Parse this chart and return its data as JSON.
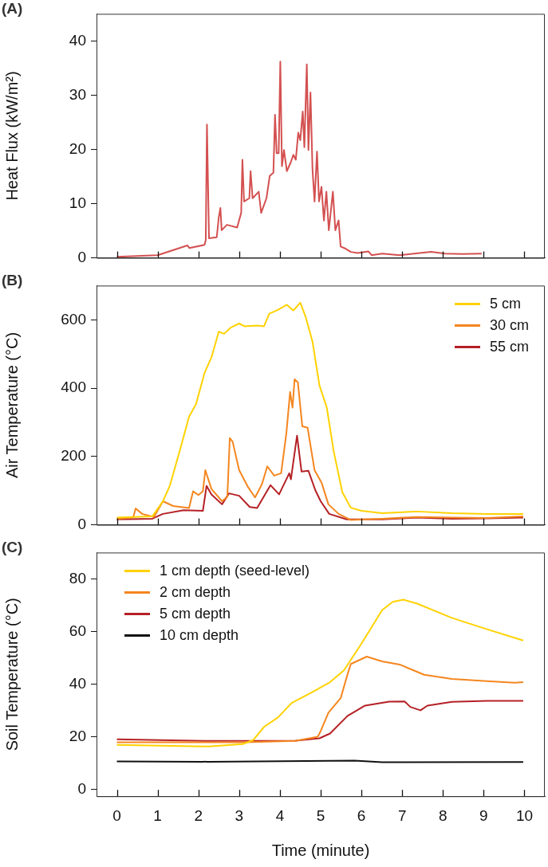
{
  "chart_data": [
    {
      "type": "line",
      "title": "(A)",
      "ylabel": "Heat Flux (kW/m²)",
      "xlim": [
        -0.5,
        10.5
      ],
      "xticks": [
        0,
        1,
        2,
        3,
        4,
        5,
        6,
        7,
        8,
        9,
        10
      ],
      "ylim": [
        0,
        45
      ],
      "yticks": [
        0,
        10,
        20,
        30,
        40
      ],
      "tick_labels": "y",
      "grid": false,
      "legend": false,
      "series": [
        {
          "color": "#d45050",
          "x": [
            0,
            1,
            1.73,
            1.78,
            2.15,
            2.18,
            2.21,
            2.26,
            2.45,
            2.5,
            2.54,
            2.57,
            2.7,
            2.95,
            3.05,
            3.08,
            3.12,
            3.25,
            3.28,
            3.33,
            3.48,
            3.54,
            3.67,
            3.75,
            3.84,
            3.88,
            3.92,
            3.97,
            4.01,
            4.05,
            4.1,
            4.17,
            4.26,
            4.33,
            4.39,
            4.45,
            4.5,
            4.56,
            4.6,
            4.66,
            4.7,
            4.75,
            4.8,
            4.85,
            4.91,
            4.96,
            5.02,
            5.08,
            5.14,
            5.2,
            5.3,
            5.36,
            5.44,
            5.49,
            5.61,
            5.74,
            5.91,
            6.17,
            6.25,
            6.51,
            6.94,
            7.71,
            8.05,
            8.48,
            8.95
          ],
          "values": [
            0.2,
            0.5,
            2.3,
            1.8,
            2.4,
            3.3,
            24.6,
            3.6,
            3.8,
            7.5,
            9.2,
            5.1,
            6.1,
            5.6,
            8.3,
            18.1,
            10.4,
            11,
            16,
            11,
            12.2,
            8.3,
            11,
            15.1,
            15.7,
            26.4,
            19.3,
            19.3,
            36.2,
            16.9,
            19.9,
            16,
            17.5,
            19,
            18.1,
            23.1,
            21.7,
            27,
            20.4,
            35.7,
            19.9,
            30.5,
            16.3,
            10.4,
            19.6,
            10.4,
            13.1,
            6.9,
            12.2,
            5.1,
            12.2,
            5.1,
            6.9,
            2.1,
            1.7,
            1.1,
            0.9,
            1.2,
            0.5,
            0.8,
            0.5,
            1.1,
            0.8,
            0.7,
            0.8
          ]
        }
      ]
    },
    {
      "type": "line",
      "title": "(B)",
      "ylabel": "Air Temperature (°C)",
      "xlim": [
        -0.5,
        10.5
      ],
      "xticks": [
        0,
        1,
        2,
        3,
        4,
        5,
        6,
        7,
        8,
        9,
        10
      ],
      "ylim": [
        0,
        700
      ],
      "yticks": [
        0,
        200,
        400,
        600
      ],
      "tick_labels": "y",
      "grid": false,
      "legend": "top right",
      "series": [
        {
          "name": "5 cm",
          "color": "#ffd200",
          "x": [
            0,
            0.87,
            1.13,
            1.3,
            1.56,
            1.77,
            1.94,
            2.15,
            2.32,
            2.5,
            2.63,
            2.79,
            3.0,
            3.13,
            3.44,
            3.61,
            3.74,
            3.95,
            4.17,
            4.33,
            4.5,
            4.63,
            4.8,
            4.97,
            5.15,
            5.32,
            5.53,
            5.74,
            6.0,
            6.51,
            7.37,
            8.22,
            9.08,
            9.97
          ],
          "values": [
            21,
            25,
            69,
            115,
            224,
            316,
            353,
            444,
            490,
            565,
            559,
            577,
            589,
            581,
            583,
            581,
            618,
            629,
            644,
            627,
            650,
            609,
            536,
            408,
            343,
            215,
            96,
            50,
            41,
            34,
            39,
            34,
            32,
            32
          ]
        },
        {
          "name": "30 cm",
          "color": "#f5861f",
          "x": [
            0,
            0.4,
            0.46,
            0.62,
            0.91,
            1.13,
            1.38,
            1.77,
            1.87,
            2.0,
            2.11,
            2.17,
            2.32,
            2.58,
            2.71,
            2.77,
            2.84,
            3.0,
            3.22,
            3.39,
            3.56,
            3.69,
            3.86,
            4.03,
            4.16,
            4.25,
            4.31,
            4.36,
            4.44,
            4.55,
            4.68,
            4.85,
            5.02,
            5.19,
            5.44,
            5.74,
            6.51,
            7.37,
            8.22,
            9.08,
            9.97
          ],
          "values": [
            18,
            21,
            48,
            32,
            23,
            69,
            55,
            49,
            98,
            87,
            98,
            160,
            105,
            69,
            82,
            254,
            243,
            160,
            110,
            80,
            119,
            171,
            144,
            151,
            270,
            389,
            343,
            426,
            417,
            288,
            284,
            160,
            124,
            60,
            32,
            14,
            18,
            23,
            21,
            20,
            25
          ]
        },
        {
          "name": "55 cm",
          "color": "#b52025",
          "x": [
            0,
            0.87,
            1.13,
            1.64,
            2.11,
            2.2,
            2.32,
            2.58,
            2.75,
            3.0,
            3.26,
            3.44,
            3.77,
            3.98,
            4.23,
            4.27,
            4.42,
            4.53,
            4.7,
            4.87,
            5.0,
            5.21,
            5.64,
            6.51,
            7.37,
            8.22,
            9.08,
            9.97
          ],
          "values": [
            16,
            18,
            32,
            43,
            41,
            114,
            89,
            60,
            92,
            85,
            52,
            49,
            116,
            89,
            151,
            133,
            261,
            156,
            158,
            101,
            69,
            32,
            16,
            16,
            21,
            18,
            19,
            21
          ]
        }
      ]
    },
    {
      "type": "line",
      "title": "(C)",
      "xlabel": "Time (minute)",
      "ylabel": "Soil Temperature (°C)",
      "xlim": [
        -0.5,
        10.5
      ],
      "xticks": [
        0,
        1,
        2,
        3,
        4,
        5,
        6,
        7,
        8,
        9,
        10
      ],
      "ylim": [
        -2.5,
        90
      ],
      "yticks": [
        0,
        20,
        40,
        60,
        80
      ],
      "grid": false,
      "legend": "top left",
      "series": [
        {
          "name": "1 cm depth (seed-level)",
          "color": "#ffd200",
          "x": [
            0,
            2.24,
            3.09,
            3.35,
            3.61,
            3.95,
            4.29,
            4.8,
            5.23,
            5.57,
            6.0,
            6.51,
            6.77,
            7.03,
            7.37,
            8.22,
            9.08,
            9.97
          ],
          "values": [
            17,
            16.4,
            17.3,
            18.9,
            23.8,
            27.4,
            32.9,
            37.1,
            40.8,
            45.3,
            55.4,
            68.2,
            71.3,
            72.1,
            70.6,
            65.2,
            60.9,
            56.6
          ]
        },
        {
          "name": "2 cm depth",
          "color": "#f5861f",
          "x": [
            0,
            3.09,
            4.38,
            4.93,
            4.99,
            5.19,
            5.49,
            5.66,
            5.74,
            6.13,
            6.51,
            6.94,
            7.54,
            8.22,
            9.08,
            9.76,
            9.97
          ],
          "values": [
            18,
            18,
            18.5,
            20.1,
            21.9,
            29.2,
            34.7,
            43.8,
            47.7,
            50.5,
            48.7,
            47.5,
            43.6,
            42,
            41.2,
            40.6,
            40.8
          ]
        },
        {
          "name": "5 cm depth",
          "color": "#b52025",
          "x": [
            0,
            2.24,
            4.38,
            4.97,
            5.23,
            5.66,
            6.09,
            6.68,
            7.06,
            7.2,
            7.45,
            7.62,
            8.22,
            9.08,
            9.97
          ],
          "values": [
            19.1,
            18.5,
            18.6,
            19.5,
            21.3,
            28,
            31.9,
            33.4,
            33.5,
            31.4,
            30.1,
            31.9,
            33.3,
            33.7,
            33.7
          ]
        },
        {
          "name": "10 cm depth",
          "color": "#111111",
          "x": [
            0,
            2.24,
            5.83,
            6.51,
            9.97
          ],
          "values": [
            10.7,
            10.6,
            11,
            10.4,
            10.5
          ]
        }
      ]
    }
  ]
}
